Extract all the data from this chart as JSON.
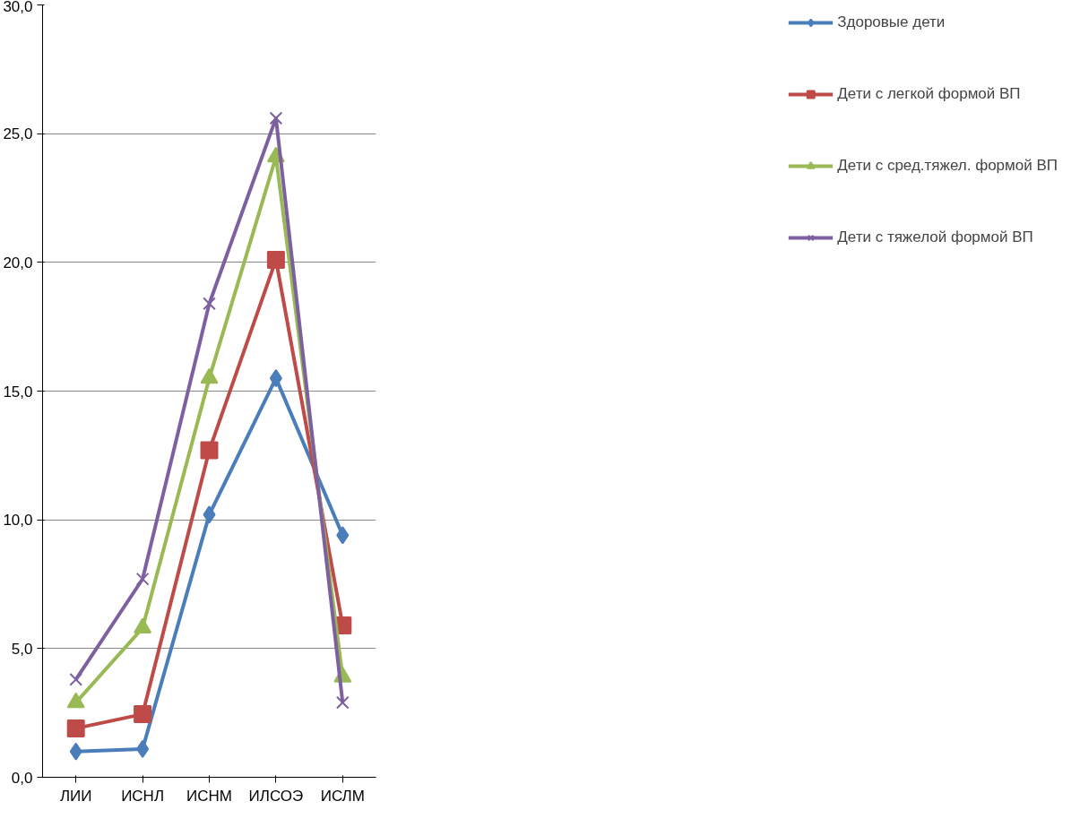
{
  "chart_data": {
    "type": "line",
    "categories": [
      "ЛИИ",
      "ИСНЛ",
      "ИСНМ",
      "ИЛСОЭ",
      "ИСЛМ"
    ],
    "series": [
      {
        "name": "Здоровые дети",
        "color": "#4a7ebb",
        "marker": "diamond",
        "values": [
          1.0,
          1.1,
          10.2,
          15.5,
          9.4
        ]
      },
      {
        "name": "Дети с легкой формой ВП",
        "color": "#be4b48",
        "marker": "square",
        "values": [
          1.9,
          2.45,
          12.7,
          20.1,
          5.9
        ]
      },
      {
        "name": "Дети с сред.тяжел. формой ВП",
        "color": "#98b954",
        "marker": "triangle",
        "values": [
          2.9,
          5.8,
          15.5,
          24.1,
          3.9
        ]
      },
      {
        "name": "Дети с тяжелой формой ВП",
        "color": "#7d60a0",
        "marker": "cross",
        "values": [
          3.8,
          7.7,
          18.4,
          25.6,
          2.9
        ]
      }
    ],
    "ylim": [
      0,
      30
    ],
    "yticks": [
      {
        "value": 0,
        "label": "0,0"
      },
      {
        "value": 5,
        "label": "5,0"
      },
      {
        "value": 10,
        "label": "10,0"
      },
      {
        "value": 15,
        "label": "15,0"
      },
      {
        "value": 20,
        "label": "20,0"
      },
      {
        "value": 25,
        "label": "25,0"
      },
      {
        "value": 30,
        "label": "30,0"
      }
    ],
    "grid": "y",
    "legend": "right",
    "line_style": "solid"
  }
}
